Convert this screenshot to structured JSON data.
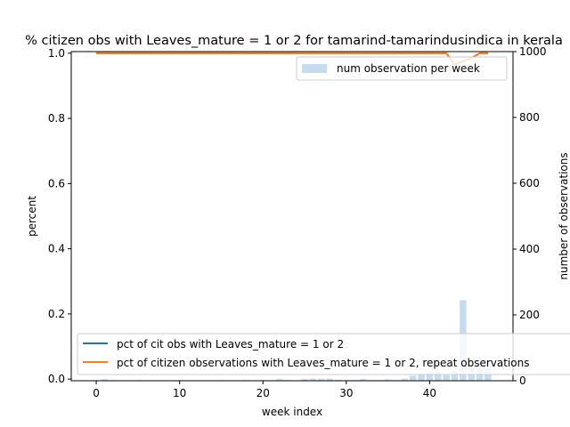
{
  "chart_data": {
    "type": "bar",
    "title": "% citizen obs with Leaves_mature = 1 or 2 for tamarind-tamarindusindica in kerala",
    "xlabel": "week index",
    "ylabel": "percent",
    "y2label": "number of observations",
    "xlim": [
      -3,
      50
    ],
    "ylim": [
      -0.005,
      1.005
    ],
    "y2lim": [
      0,
      1000
    ],
    "xticks": [
      0,
      10,
      20,
      30,
      40
    ],
    "yticks": [
      0.0,
      0.2,
      0.4,
      0.6,
      0.8,
      1.0
    ],
    "y2ticks": [
      0,
      200,
      400,
      600,
      800,
      1000
    ],
    "xtick_labels": [
      "0",
      "10",
      "20",
      "30",
      "40"
    ],
    "ytick_labels": [
      "0.0",
      "0.2",
      "0.4",
      "0.6",
      "0.8",
      "1.0"
    ],
    "y2tick_labels": [
      "0",
      "200",
      "400",
      "600",
      "800",
      "1000"
    ],
    "grid": false,
    "bars": {
      "name": "num observation per week",
      "color": "#c6dbef",
      "x": [
        0,
        1,
        2,
        3,
        4,
        5,
        6,
        7,
        8,
        9,
        10,
        11,
        12,
        13,
        14,
        15,
        16,
        17,
        18,
        19,
        20,
        21,
        22,
        23,
        24,
        25,
        26,
        27,
        28,
        29,
        30,
        31,
        32,
        33,
        34,
        35,
        36,
        37,
        38,
        39,
        40,
        41,
        42,
        43,
        44,
        45,
        46,
        47
      ],
      "values": [
        2,
        5,
        2,
        1,
        1,
        2,
        1,
        1,
        1,
        1,
        2,
        1,
        1,
        1,
        1,
        2,
        1,
        1,
        2,
        1,
        2,
        1,
        5,
        2,
        1,
        5,
        6,
        6,
        6,
        3,
        2,
        2,
        5,
        2,
        2,
        4,
        2,
        6,
        15,
        20,
        28,
        27,
        17,
        28,
        245,
        70,
        58,
        60
      ]
    },
    "lines": [
      {
        "name": "pct of cit obs with Leaves_mature = 1 or 2",
        "color": "#1f77b4",
        "x": [
          0,
          42,
          43,
          44,
          45,
          46,
          47
        ],
        "y": [
          1.0,
          1.0,
          0.965,
          0.975,
          0.985,
          1.0,
          1.0
        ]
      },
      {
        "name": "pct of citizen observations with Leaves_mature = 1 or 2, repeat observations",
        "color": "#ff7f0e",
        "x": [
          0,
          42,
          43,
          44,
          45,
          46,
          47
        ],
        "y": [
          1.0,
          1.0,
          0.965,
          0.975,
          0.985,
          1.0,
          1.0
        ]
      }
    ],
    "legend_upper": {
      "placement": "top-right",
      "entries": [
        "num observation per week"
      ]
    },
    "legend_lower": {
      "placement": "bottom-left",
      "entries": [
        "pct of cit obs with Leaves_mature = 1 or 2",
        "pct of citizen observations with Leaves_mature = 1 or 2, repeat observations"
      ]
    }
  }
}
